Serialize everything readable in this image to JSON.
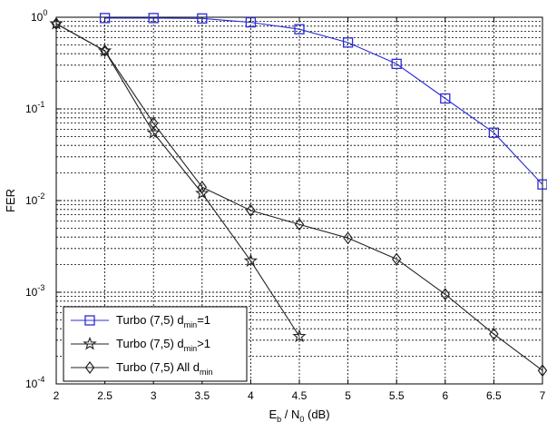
{
  "chart_data": {
    "type": "line",
    "title": "",
    "xlabel": {
      "base": "E",
      "base_sub": "b",
      "mid": " / N",
      "mid_sub": "0",
      "tail": " (dB)"
    },
    "ylabel": "FER",
    "xlim": [
      2,
      7
    ],
    "ylim": [
      0.0001,
      1
    ],
    "yscale": "log",
    "grid": "on (major and minor)",
    "x_ticks": [
      2,
      2.5,
      3,
      3.5,
      4,
      4.5,
      5,
      5.5,
      6,
      6.5,
      7
    ],
    "x_tick_labels": [
      "2",
      "2.5",
      "3",
      "3.5",
      "4",
      "4.5",
      "5",
      "5.5",
      "6",
      "6.5",
      "7"
    ],
    "y_ticks": [
      {
        "value": 1,
        "base": "10",
        "exp": "0"
      },
      {
        "value": 0.1,
        "base": "10",
        "exp": "-1"
      },
      {
        "value": 0.01,
        "base": "10",
        "exp": "-2"
      },
      {
        "value": 0.001,
        "base": "10",
        "exp": "-3"
      },
      {
        "value": 0.0001,
        "base": "10",
        "exp": "-4"
      }
    ],
    "legend_position": "lower-left",
    "series": [
      {
        "legend": {
          "pre": "Turbo (7,5) d",
          "sub": "min",
          "post": "=1"
        },
        "color": "#2b2bd9",
        "marker": "square",
        "x": [
          2.5,
          3,
          3.5,
          4,
          4.5,
          5,
          5.5,
          6,
          6.5,
          7
        ],
        "y": [
          0.98,
          0.98,
          0.97,
          0.88,
          0.74,
          0.53,
          0.31,
          0.13,
          0.055,
          0.015
        ]
      },
      {
        "legend": {
          "pre": "Turbo (7,5) d",
          "sub": "min",
          "post": ">1"
        },
        "color": "#222222",
        "marker": "star",
        "x": [
          2,
          2.5,
          3,
          3.5,
          4,
          4.5
        ],
        "y": [
          0.85,
          0.43,
          0.055,
          0.012,
          0.0022,
          0.00033
        ]
      },
      {
        "legend": {
          "pre": "Turbo (7,5) All d",
          "sub": "min",
          "post": ""
        },
        "color": "#222222",
        "marker": "diamond",
        "x": [
          2,
          2.5,
          3,
          3.5,
          4,
          4.5,
          5,
          5.5,
          6,
          6.5,
          7
        ],
        "y": [
          0.85,
          0.43,
          0.07,
          0.014,
          0.0078,
          0.0055,
          0.0039,
          0.0023,
          0.00095,
          0.00035,
          0.00014
        ]
      }
    ]
  }
}
